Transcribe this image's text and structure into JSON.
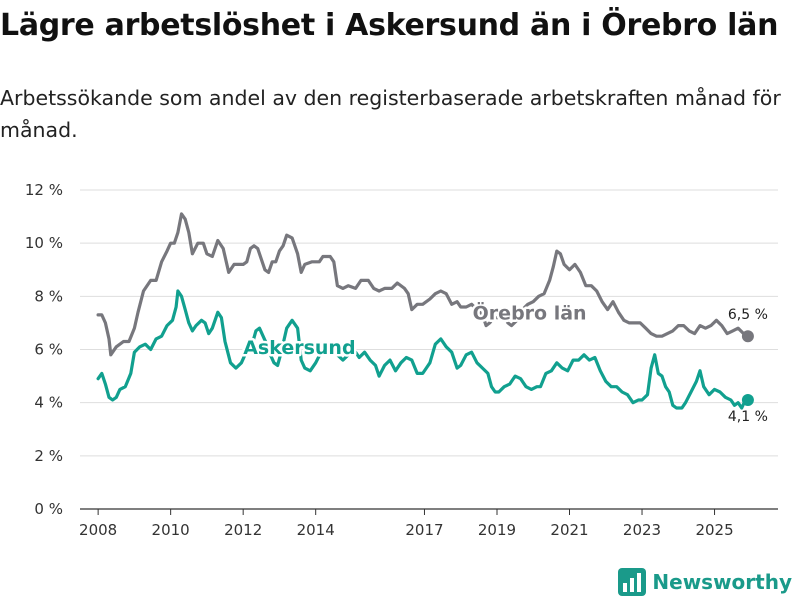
{
  "title": "Lägre arbetslöshet i Askersund än i Örebro län",
  "subtitle": "Arbetssökande som andel av den registerbaserade arbetskraften månad för månad.",
  "brand": "Newsworthy",
  "colors": {
    "askersund": "#11a08f",
    "orebro": "#77777d",
    "grid": "#dedede",
    "axis": "#333333"
  },
  "chart_data": {
    "type": "line",
    "ylim": [
      0,
      12
    ],
    "yticks": [
      0,
      2,
      4,
      6,
      8,
      10,
      12
    ],
    "ytick_labels": [
      "0 %",
      "2 %",
      "4 %",
      "6 %",
      "8 %",
      "10 %",
      "12 %"
    ],
    "xlim": [
      2007.5,
      2026.75
    ],
    "xticks": [
      2008,
      2010,
      2012,
      2014,
      2017,
      2019,
      2021,
      2023,
      2025
    ],
    "xtick_labels": [
      "2008",
      "2010",
      "2012",
      "2014",
      "2017",
      "2019",
      "2021",
      "2023",
      "2025"
    ],
    "series": [
      {
        "name": "Örebro län",
        "key": "orebro",
        "end_label": "6,5 %",
        "points": [
          [
            2008.0,
            7.3
          ],
          [
            2008.1,
            7.3
          ],
          [
            2008.2,
            7.0
          ],
          [
            2008.3,
            6.4
          ],
          [
            2008.35,
            5.8
          ],
          [
            2008.5,
            6.1
          ],
          [
            2008.7,
            6.3
          ],
          [
            2008.85,
            6.3
          ],
          [
            2009.0,
            6.8
          ],
          [
            2009.1,
            7.4
          ],
          [
            2009.25,
            8.2
          ],
          [
            2009.45,
            8.6
          ],
          [
            2009.6,
            8.6
          ],
          [
            2009.75,
            9.3
          ],
          [
            2009.9,
            9.7
          ],
          [
            2010.0,
            10.0
          ],
          [
            2010.1,
            10.0
          ],
          [
            2010.2,
            10.4
          ],
          [
            2010.3,
            11.1
          ],
          [
            2010.4,
            10.9
          ],
          [
            2010.5,
            10.4
          ],
          [
            2010.6,
            9.6
          ],
          [
            2010.75,
            10.0
          ],
          [
            2010.9,
            10.0
          ],
          [
            2011.0,
            9.6
          ],
          [
            2011.15,
            9.5
          ],
          [
            2011.3,
            10.1
          ],
          [
            2011.45,
            9.8
          ],
          [
            2011.6,
            8.9
          ],
          [
            2011.75,
            9.2
          ],
          [
            2011.9,
            9.2
          ],
          [
            2012.0,
            9.2
          ],
          [
            2012.1,
            9.3
          ],
          [
            2012.2,
            9.8
          ],
          [
            2012.3,
            9.9
          ],
          [
            2012.4,
            9.8
          ],
          [
            2012.5,
            9.4
          ],
          [
            2012.6,
            9.0
          ],
          [
            2012.7,
            8.9
          ],
          [
            2012.8,
            9.3
          ],
          [
            2012.9,
            9.3
          ],
          [
            2013.0,
            9.7
          ],
          [
            2013.1,
            9.9
          ],
          [
            2013.2,
            10.3
          ],
          [
            2013.35,
            10.2
          ],
          [
            2013.5,
            9.6
          ],
          [
            2013.6,
            8.9
          ],
          [
            2013.7,
            9.2
          ],
          [
            2013.9,
            9.3
          ],
          [
            2014.1,
            9.3
          ],
          [
            2014.2,
            9.5
          ],
          [
            2014.4,
            9.5
          ],
          [
            2014.5,
            9.3
          ],
          [
            2014.6,
            8.4
          ],
          [
            2014.75,
            8.3
          ],
          [
            2014.9,
            8.4
          ],
          [
            2015.1,
            8.3
          ],
          [
            2015.25,
            8.6
          ],
          [
            2015.45,
            8.6
          ],
          [
            2015.6,
            8.3
          ],
          [
            2015.75,
            8.2
          ],
          [
            2015.9,
            8.3
          ],
          [
            2016.1,
            8.3
          ],
          [
            2016.25,
            8.5
          ],
          [
            2016.45,
            8.3
          ],
          [
            2016.55,
            8.1
          ],
          [
            2016.65,
            7.5
          ],
          [
            2016.8,
            7.7
          ],
          [
            2016.95,
            7.7
          ],
          [
            2017.15,
            7.9
          ],
          [
            2017.3,
            8.1
          ],
          [
            2017.45,
            8.2
          ],
          [
            2017.6,
            8.1
          ],
          [
            2017.75,
            7.7
          ],
          [
            2017.9,
            7.8
          ],
          [
            2018.0,
            7.6
          ],
          [
            2018.15,
            7.6
          ],
          [
            2018.3,
            7.7
          ],
          [
            2018.45,
            7.5
          ],
          [
            2018.6,
            7.3
          ],
          [
            2018.7,
            6.9
          ],
          [
            2018.8,
            7.0
          ],
          [
            2018.9,
            7.2
          ],
          [
            2019.05,
            7.2
          ],
          [
            2019.2,
            7.3
          ],
          [
            2019.3,
            7.0
          ],
          [
            2019.4,
            6.9
          ],
          [
            2019.55,
            7.1
          ],
          [
            2019.7,
            7.5
          ],
          [
            2019.85,
            7.7
          ],
          [
            2020.0,
            7.8
          ],
          [
            2020.15,
            8.0
          ],
          [
            2020.3,
            8.1
          ],
          [
            2020.45,
            8.6
          ],
          [
            2020.55,
            9.1
          ],
          [
            2020.65,
            9.7
          ],
          [
            2020.75,
            9.6
          ],
          [
            2020.85,
            9.2
          ],
          [
            2021.0,
            9.0
          ],
          [
            2021.15,
            9.2
          ],
          [
            2021.3,
            8.9
          ],
          [
            2021.45,
            8.4
          ],
          [
            2021.6,
            8.4
          ],
          [
            2021.75,
            8.2
          ],
          [
            2021.9,
            7.8
          ],
          [
            2022.05,
            7.5
          ],
          [
            2022.2,
            7.8
          ],
          [
            2022.35,
            7.4
          ],
          [
            2022.5,
            7.1
          ],
          [
            2022.65,
            7.0
          ],
          [
            2022.8,
            7.0
          ],
          [
            2022.95,
            7.0
          ],
          [
            2023.1,
            6.8
          ],
          [
            2023.25,
            6.6
          ],
          [
            2023.4,
            6.5
          ],
          [
            2023.55,
            6.5
          ],
          [
            2023.7,
            6.6
          ],
          [
            2023.85,
            6.7
          ],
          [
            2024.0,
            6.9
          ],
          [
            2024.15,
            6.9
          ],
          [
            2024.3,
            6.7
          ],
          [
            2024.45,
            6.6
          ],
          [
            2024.6,
            6.9
          ],
          [
            2024.75,
            6.8
          ],
          [
            2024.9,
            6.9
          ],
          [
            2025.05,
            7.1
          ],
          [
            2025.2,
            6.9
          ],
          [
            2025.35,
            6.6
          ],
          [
            2025.5,
            6.7
          ],
          [
            2025.65,
            6.8
          ],
          [
            2025.8,
            6.6
          ],
          [
            2025.92,
            6.5
          ]
        ]
      },
      {
        "name": "Askersund",
        "key": "askersund",
        "end_label": "4,1 %",
        "points": [
          [
            2008.0,
            4.9
          ],
          [
            2008.1,
            5.1
          ],
          [
            2008.2,
            4.7
          ],
          [
            2008.3,
            4.2
          ],
          [
            2008.4,
            4.1
          ],
          [
            2008.5,
            4.2
          ],
          [
            2008.6,
            4.5
          ],
          [
            2008.75,
            4.6
          ],
          [
            2008.9,
            5.1
          ],
          [
            2009.0,
            5.9
          ],
          [
            2009.15,
            6.1
          ],
          [
            2009.3,
            6.2
          ],
          [
            2009.45,
            6.0
          ],
          [
            2009.6,
            6.4
          ],
          [
            2009.75,
            6.5
          ],
          [
            2009.9,
            6.9
          ],
          [
            2010.05,
            7.1
          ],
          [
            2010.15,
            7.6
          ],
          [
            2010.2,
            8.2
          ],
          [
            2010.3,
            8.0
          ],
          [
            2010.4,
            7.5
          ],
          [
            2010.5,
            7.0
          ],
          [
            2010.6,
            6.7
          ],
          [
            2010.7,
            6.9
          ],
          [
            2010.85,
            7.1
          ],
          [
            2010.95,
            7.0
          ],
          [
            2011.05,
            6.6
          ],
          [
            2011.15,
            6.8
          ],
          [
            2011.3,
            7.4
          ],
          [
            2011.4,
            7.2
          ],
          [
            2011.5,
            6.3
          ],
          [
            2011.65,
            5.5
          ],
          [
            2011.8,
            5.3
          ],
          [
            2011.95,
            5.5
          ],
          [
            2012.05,
            5.8
          ],
          [
            2012.15,
            6.1
          ],
          [
            2012.25,
            6.2
          ],
          [
            2012.35,
            6.7
          ],
          [
            2012.45,
            6.8
          ],
          [
            2012.55,
            6.5
          ],
          [
            2012.65,
            6.2
          ],
          [
            2012.75,
            5.8
          ],
          [
            2012.85,
            5.5
          ],
          [
            2012.95,
            5.4
          ],
          [
            2013.05,
            5.9
          ],
          [
            2013.2,
            6.8
          ],
          [
            2013.35,
            7.1
          ],
          [
            2013.5,
            6.8
          ],
          [
            2013.6,
            5.6
          ],
          [
            2013.7,
            5.3
          ],
          [
            2013.85,
            5.2
          ],
          [
            2014.0,
            5.5
          ],
          [
            2014.15,
            5.9
          ],
          [
            2014.3,
            6.2
          ],
          [
            2014.45,
            6.0
          ],
          [
            2014.6,
            5.8
          ],
          [
            2014.75,
            5.6
          ],
          [
            2014.9,
            5.8
          ],
          [
            2015.05,
            6.0
          ],
          [
            2015.2,
            5.7
          ],
          [
            2015.35,
            5.9
          ],
          [
            2015.5,
            5.6
          ],
          [
            2015.65,
            5.4
          ],
          [
            2015.75,
            5.0
          ],
          [
            2015.9,
            5.4
          ],
          [
            2016.05,
            5.6
          ],
          [
            2016.2,
            5.2
          ],
          [
            2016.35,
            5.5
          ],
          [
            2016.5,
            5.7
          ],
          [
            2016.65,
            5.6
          ],
          [
            2016.8,
            5.1
          ],
          [
            2016.95,
            5.1
          ],
          [
            2017.05,
            5.3
          ],
          [
            2017.15,
            5.5
          ],
          [
            2017.3,
            6.2
          ],
          [
            2017.45,
            6.4
          ],
          [
            2017.6,
            6.1
          ],
          [
            2017.75,
            5.9
          ],
          [
            2017.9,
            5.3
          ],
          [
            2018.0,
            5.4
          ],
          [
            2018.15,
            5.8
          ],
          [
            2018.3,
            5.9
          ],
          [
            2018.45,
            5.5
          ],
          [
            2018.6,
            5.3
          ],
          [
            2018.75,
            5.1
          ],
          [
            2018.85,
            4.6
          ],
          [
            2018.95,
            4.4
          ],
          [
            2019.05,
            4.4
          ],
          [
            2019.2,
            4.6
          ],
          [
            2019.35,
            4.7
          ],
          [
            2019.5,
            5.0
          ],
          [
            2019.65,
            4.9
          ],
          [
            2019.8,
            4.6
          ],
          [
            2019.95,
            4.5
          ],
          [
            2020.1,
            4.6
          ],
          [
            2020.2,
            4.6
          ],
          [
            2020.35,
            5.1
          ],
          [
            2020.5,
            5.2
          ],
          [
            2020.65,
            5.5
          ],
          [
            2020.8,
            5.3
          ],
          [
            2020.95,
            5.2
          ],
          [
            2021.1,
            5.6
          ],
          [
            2021.25,
            5.6
          ],
          [
            2021.4,
            5.8
          ],
          [
            2021.55,
            5.6
          ],
          [
            2021.7,
            5.7
          ],
          [
            2021.85,
            5.2
          ],
          [
            2022.0,
            4.8
          ],
          [
            2022.15,
            4.6
          ],
          [
            2022.3,
            4.6
          ],
          [
            2022.45,
            4.4
          ],
          [
            2022.6,
            4.3
          ],
          [
            2022.75,
            4.0
          ],
          [
            2022.9,
            4.1
          ],
          [
            2023.0,
            4.1
          ],
          [
            2023.15,
            4.3
          ],
          [
            2023.25,
            5.3
          ],
          [
            2023.35,
            5.8
          ],
          [
            2023.45,
            5.1
          ],
          [
            2023.55,
            5.0
          ],
          [
            2023.65,
            4.6
          ],
          [
            2023.75,
            4.4
          ],
          [
            2023.85,
            3.9
          ],
          [
            2023.95,
            3.8
          ],
          [
            2024.1,
            3.8
          ],
          [
            2024.2,
            4.0
          ],
          [
            2024.35,
            4.4
          ],
          [
            2024.5,
            4.8
          ],
          [
            2024.6,
            5.2
          ],
          [
            2024.7,
            4.6
          ],
          [
            2024.85,
            4.3
          ],
          [
            2025.0,
            4.5
          ],
          [
            2025.15,
            4.4
          ],
          [
            2025.3,
            4.2
          ],
          [
            2025.45,
            4.1
          ],
          [
            2025.55,
            3.9
          ],
          [
            2025.65,
            4.0
          ],
          [
            2025.75,
            3.8
          ],
          [
            2025.85,
            4.1
          ],
          [
            2025.92,
            4.1
          ]
        ]
      }
    ]
  }
}
